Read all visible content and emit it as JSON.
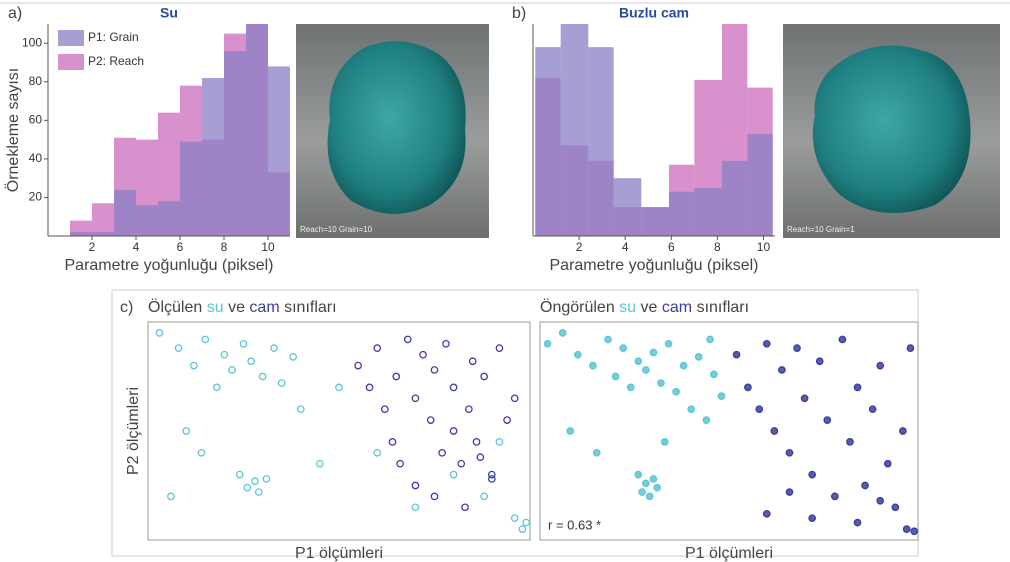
{
  "panel_labels": [
    "a)",
    "b)",
    "c)"
  ],
  "images": [
    {
      "caption": "Reach=10 Grain=10"
    },
    {
      "caption": "Reach=10 Grain=1"
    }
  ],
  "chart_data": [
    {
      "type": "histogram",
      "title": "Su",
      "xlabel": "Parametre yoğunluğu (piksel)",
      "ylabel": "Örnekleme sayısı",
      "bins": [
        1,
        2,
        3,
        4,
        5,
        6,
        7,
        8,
        9,
        10,
        11
      ],
      "series": [
        {
          "name": "P1: Grain",
          "color": "#8a7fc4",
          "values": [
            2,
            2,
            24,
            16,
            18,
            49,
            82,
            96,
            110,
            88
          ]
        },
        {
          "name": "P2: Reach",
          "color": "#cc6cbc",
          "values": [
            8,
            17,
            51,
            50,
            64,
            78,
            50,
            105,
            110,
            33
          ]
        }
      ],
      "xlim": [
        0,
        11
      ],
      "ylim": [
        0,
        110
      ],
      "xticks": [
        2,
        4,
        6,
        8,
        10
      ],
      "yticks": [
        20,
        40,
        60,
        80,
        100
      ],
      "legend": "upper left"
    },
    {
      "type": "histogram",
      "title": "Buzlu cam",
      "xlabel": "Parametre yoğunluğu (piksel)",
      "bins": [
        0.1,
        1.2,
        2.4,
        3.5,
        4.7,
        5.9,
        7.0,
        8.2,
        9.3,
        10.4
      ],
      "series": [
        {
          "color": "#8a7fc4",
          "values": [
            98,
            110,
            98,
            30,
            15,
            23,
            25,
            39,
            53
          ]
        },
        {
          "color": "#cc6cbc",
          "values": [
            82,
            47,
            39,
            15,
            15,
            37,
            81,
            110,
            77
          ]
        }
      ],
      "xlim": [
        0,
        10.5
      ],
      "ylim": [
        0,
        110
      ],
      "xticks": [
        2,
        4,
        6,
        8,
        10
      ]
    },
    {
      "type": "scatter",
      "title": [
        "Ölçülen",
        "su",
        "ve",
        "cam",
        "sınıfları"
      ],
      "xlabel": "P1 ölçümleri",
      "ylabel": "P2 ölçümleri",
      "filled": false,
      "xlim": [
        0,
        100
      ],
      "ylim": [
        0,
        100
      ],
      "series": [
        {
          "color": "#5cc6d4",
          "x": [
            3,
            8,
            12,
            15,
            18,
            20,
            22,
            25,
            27,
            30,
            33,
            35,
            38,
            10,
            14,
            24,
            26,
            28,
            29,
            31,
            6,
            40,
            45,
            50,
            60,
            70,
            80,
            88,
            92,
            96,
            98,
            99
          ],
          "values": [
            95,
            88,
            80,
            92,
            70,
            85,
            78,
            90,
            82,
            75,
            88,
            72,
            84,
            50,
            40,
            30,
            24,
            27,
            22,
            28,
            20,
            60,
            35,
            70,
            40,
            15,
            30,
            20,
            45,
            10,
            5,
            8
          ]
        },
        {
          "color": "#3a3f9e",
          "x": [
            55,
            58,
            60,
            62,
            65,
            68,
            70,
            72,
            74,
            75,
            77,
            78,
            80,
            82,
            84,
            85,
            86,
            88,
            90,
            92,
            94,
            96,
            70,
            75,
            80,
            83,
            87,
            90,
            64,
            66
          ],
          "values": [
            80,
            70,
            88,
            60,
            75,
            92,
            65,
            85,
            55,
            78,
            40,
            90,
            70,
            35,
            60,
            82,
            45,
            75,
            30,
            88,
            55,
            65,
            25,
            20,
            50,
            15,
            38,
            28,
            45,
            35
          ]
        }
      ]
    },
    {
      "type": "scatter",
      "title": [
        "Öngörülen",
        "su",
        "ve",
        "cam",
        "sınıfları"
      ],
      "xlabel": "P1 ölçümleri",
      "annotation": "r = 0.63 *",
      "filled": true,
      "xlim": [
        0,
        100
      ],
      "ylim": [
        0,
        100
      ],
      "series": [
        {
          "color": "#5cc6d4",
          "x": [
            2,
            6,
            10,
            14,
            18,
            20,
            22,
            24,
            26,
            28,
            30,
            32,
            34,
            36,
            38,
            40,
            42,
            44,
            46,
            48,
            26,
            27,
            28,
            29,
            30,
            31,
            8,
            15,
            33,
            45
          ],
          "values": [
            90,
            95,
            85,
            80,
            92,
            75,
            88,
            70,
            82,
            78,
            86,
            72,
            90,
            68,
            80,
            60,
            84,
            55,
            76,
            66,
            30,
            22,
            26,
            20,
            28,
            24,
            50,
            40,
            45,
            92
          ]
        },
        {
          "color": "#3a3f9e",
          "x": [
            52,
            55,
            58,
            60,
            62,
            64,
            66,
            68,
            70,
            72,
            74,
            76,
            78,
            80,
            82,
            84,
            86,
            88,
            90,
            92,
            94,
            96,
            98,
            60,
            66,
            72,
            84,
            90,
            97,
            99
          ],
          "values": [
            85,
            70,
            60,
            90,
            50,
            78,
            40,
            88,
            65,
            30,
            82,
            55,
            20,
            92,
            45,
            70,
            25,
            60,
            80,
            35,
            15,
            50,
            88,
            12,
            22,
            10,
            8,
            18,
            5,
            4
          ]
        }
      ]
    }
  ]
}
